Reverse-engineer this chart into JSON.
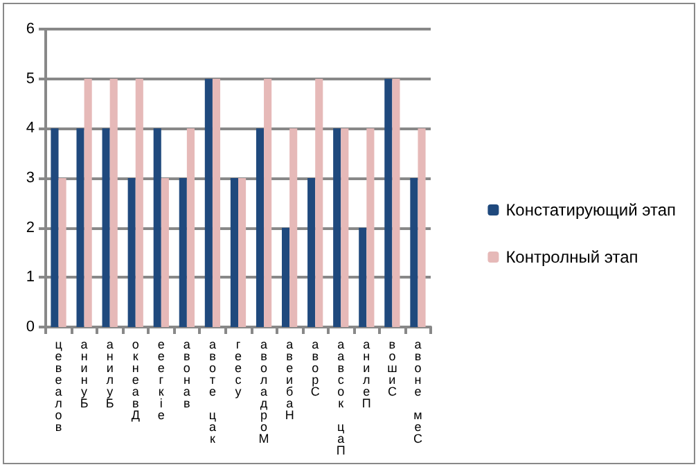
{
  "chart_data": {
    "type": "bar",
    "categories": [
      "цевеалов",
      "анинуБ",
      "анилуБ",
      "окнеавД",
      "ееегкіе",
      "авонав",
      "авоте цак",
      "геесу",
      "аволадроМ",
      "авеибаН",
      "аворС",
      "аавсок цаП",
      "анилеП",
      "вошиС",
      "авоне меС"
    ],
    "series": [
      {
        "name": "Констатирующий этап",
        "color": "#1f497d",
        "values": [
          4,
          4,
          4,
          3,
          4,
          3,
          5,
          3,
          4,
          2,
          3,
          4,
          2,
          5,
          3
        ]
      },
      {
        "name": "Контролный этап",
        "color": "#e6b9b8",
        "values": [
          3,
          5,
          5,
          5,
          3,
          4,
          5,
          3,
          5,
          4,
          5,
          4,
          4,
          5,
          4
        ]
      }
    ],
    "ylim": [
      0,
      6
    ],
    "yticks": [
      0,
      1,
      2,
      3,
      4,
      5,
      6
    ],
    "grid": "y",
    "legend": "right"
  }
}
